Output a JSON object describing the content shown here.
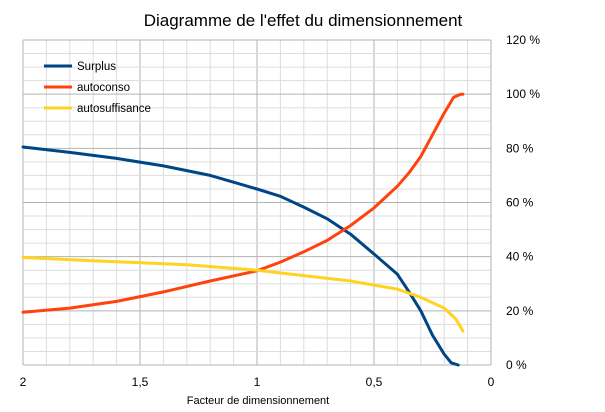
{
  "chart_data": {
    "type": "line",
    "title": "Diagramme  de l'effet du dimensionnement",
    "xlabel": "Facteur de dimensionnement",
    "ylabel": "",
    "x_reversed": true,
    "xlim": [
      2,
      0
    ],
    "ylim": [
      0,
      120
    ],
    "y_unit": "%",
    "x_ticks": [
      "2",
      "1,5",
      "1",
      "0,5",
      "0"
    ],
    "y_ticks": [
      "0 %",
      "20 %",
      "40 %",
      "60 %",
      "80 %",
      "100 %",
      "120 %"
    ],
    "x_tick_values": [
      2,
      1.5,
      1,
      0.5,
      0
    ],
    "y_tick_values": [
      0,
      20,
      40,
      60,
      80,
      100,
      120
    ],
    "grid": true,
    "legend_position": "top-left",
    "series": [
      {
        "name": "Surplus",
        "color": "#004586",
        "points": [
          [
            2,
            80.5
          ],
          [
            1.8,
            78.5
          ],
          [
            1.6,
            76.3
          ],
          [
            1.4,
            73.5
          ],
          [
            1.2,
            70
          ],
          [
            1.1,
            67.5
          ],
          [
            1,
            65
          ],
          [
            0.9,
            62.3
          ],
          [
            0.8,
            58.3
          ],
          [
            0.7,
            54
          ],
          [
            0.6,
            48.3
          ],
          [
            0.5,
            41
          ],
          [
            0.4,
            33.5
          ],
          [
            0.35,
            27
          ],
          [
            0.3,
            20
          ],
          [
            0.25,
            11
          ],
          [
            0.2,
            4
          ],
          [
            0.17,
            0.8
          ],
          [
            0.14,
            0
          ]
        ]
      },
      {
        "name": "autoconso",
        "color": "#ff420e",
        "points": [
          [
            2,
            19.5
          ],
          [
            1.8,
            21
          ],
          [
            1.6,
            23.5
          ],
          [
            1.4,
            27
          ],
          [
            1.2,
            31
          ],
          [
            1,
            34.8
          ],
          [
            0.9,
            38
          ],
          [
            0.8,
            41.8
          ],
          [
            0.7,
            46
          ],
          [
            0.6,
            51.5
          ],
          [
            0.5,
            58
          ],
          [
            0.4,
            66
          ],
          [
            0.35,
            71
          ],
          [
            0.3,
            77
          ],
          [
            0.25,
            85
          ],
          [
            0.2,
            93
          ],
          [
            0.16,
            98.8
          ],
          [
            0.13,
            100
          ],
          [
            0.12,
            100
          ]
        ]
      },
      {
        "name": "autosuffisance",
        "color": "#ffd320",
        "points": [
          [
            2,
            39.7
          ],
          [
            1.7,
            38.5
          ],
          [
            1.3,
            37
          ],
          [
            1,
            35
          ],
          [
            0.8,
            33
          ],
          [
            0.6,
            31
          ],
          [
            0.5,
            29.5
          ],
          [
            0.4,
            28
          ],
          [
            0.3,
            25
          ],
          [
            0.2,
            21
          ],
          [
            0.15,
            17
          ],
          [
            0.12,
            12.5
          ]
        ]
      }
    ]
  }
}
